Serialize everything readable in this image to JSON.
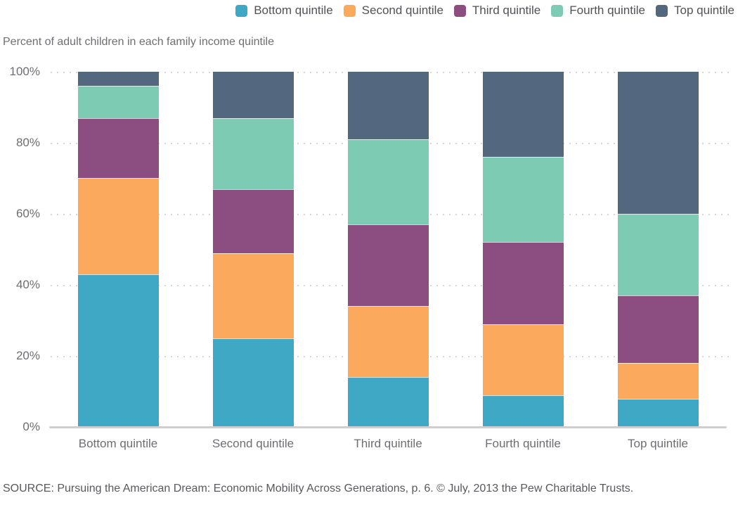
{
  "subtitle": "Percent of adult children in each family income quintile",
  "source": "SOURCE: Pursuing the American Dream: Economic Mobility Across Generations, p. 6. © July, 2013 the Pew Charitable Trusts.",
  "chart_data": {
    "type": "bar",
    "stacked": true,
    "title": "Percent of adult children in each family income quintile",
    "categories": [
      "Bottom quintile",
      "Second quintile",
      "Third quintile",
      "Fourth quintile",
      "Top quintile"
    ],
    "series": [
      {
        "name": "Bottom quintile",
        "color": "#3FA9C5",
        "values": [
          43,
          25,
          14,
          9,
          8
        ]
      },
      {
        "name": "Second quintile",
        "color": "#FBAA5D",
        "values": [
          27,
          24,
          20,
          20,
          10
        ]
      },
      {
        "name": "Third quintile",
        "color": "#8C4D80",
        "values": [
          17,
          18,
          23,
          23,
          19
        ]
      },
      {
        "name": "Fourth quintile",
        "color": "#7DCBB2",
        "values": [
          9,
          20,
          24,
          24,
          23
        ]
      },
      {
        "name": "Top quintile",
        "color": "#53677E",
        "values": [
          4,
          13,
          19,
          24,
          40
        ]
      }
    ],
    "xlabel": "",
    "ylabel": "",
    "ylim": [
      0,
      100
    ],
    "y_ticks": [
      "0%",
      "20%",
      "40%",
      "60%",
      "80%",
      "100%"
    ],
    "legend_position": "top-right",
    "grid": "dotted-horizontal",
    "gridline_color": "#d6d6d8",
    "axis_line_color": "#cfcfd1",
    "text_color": "#6d6e71"
  }
}
